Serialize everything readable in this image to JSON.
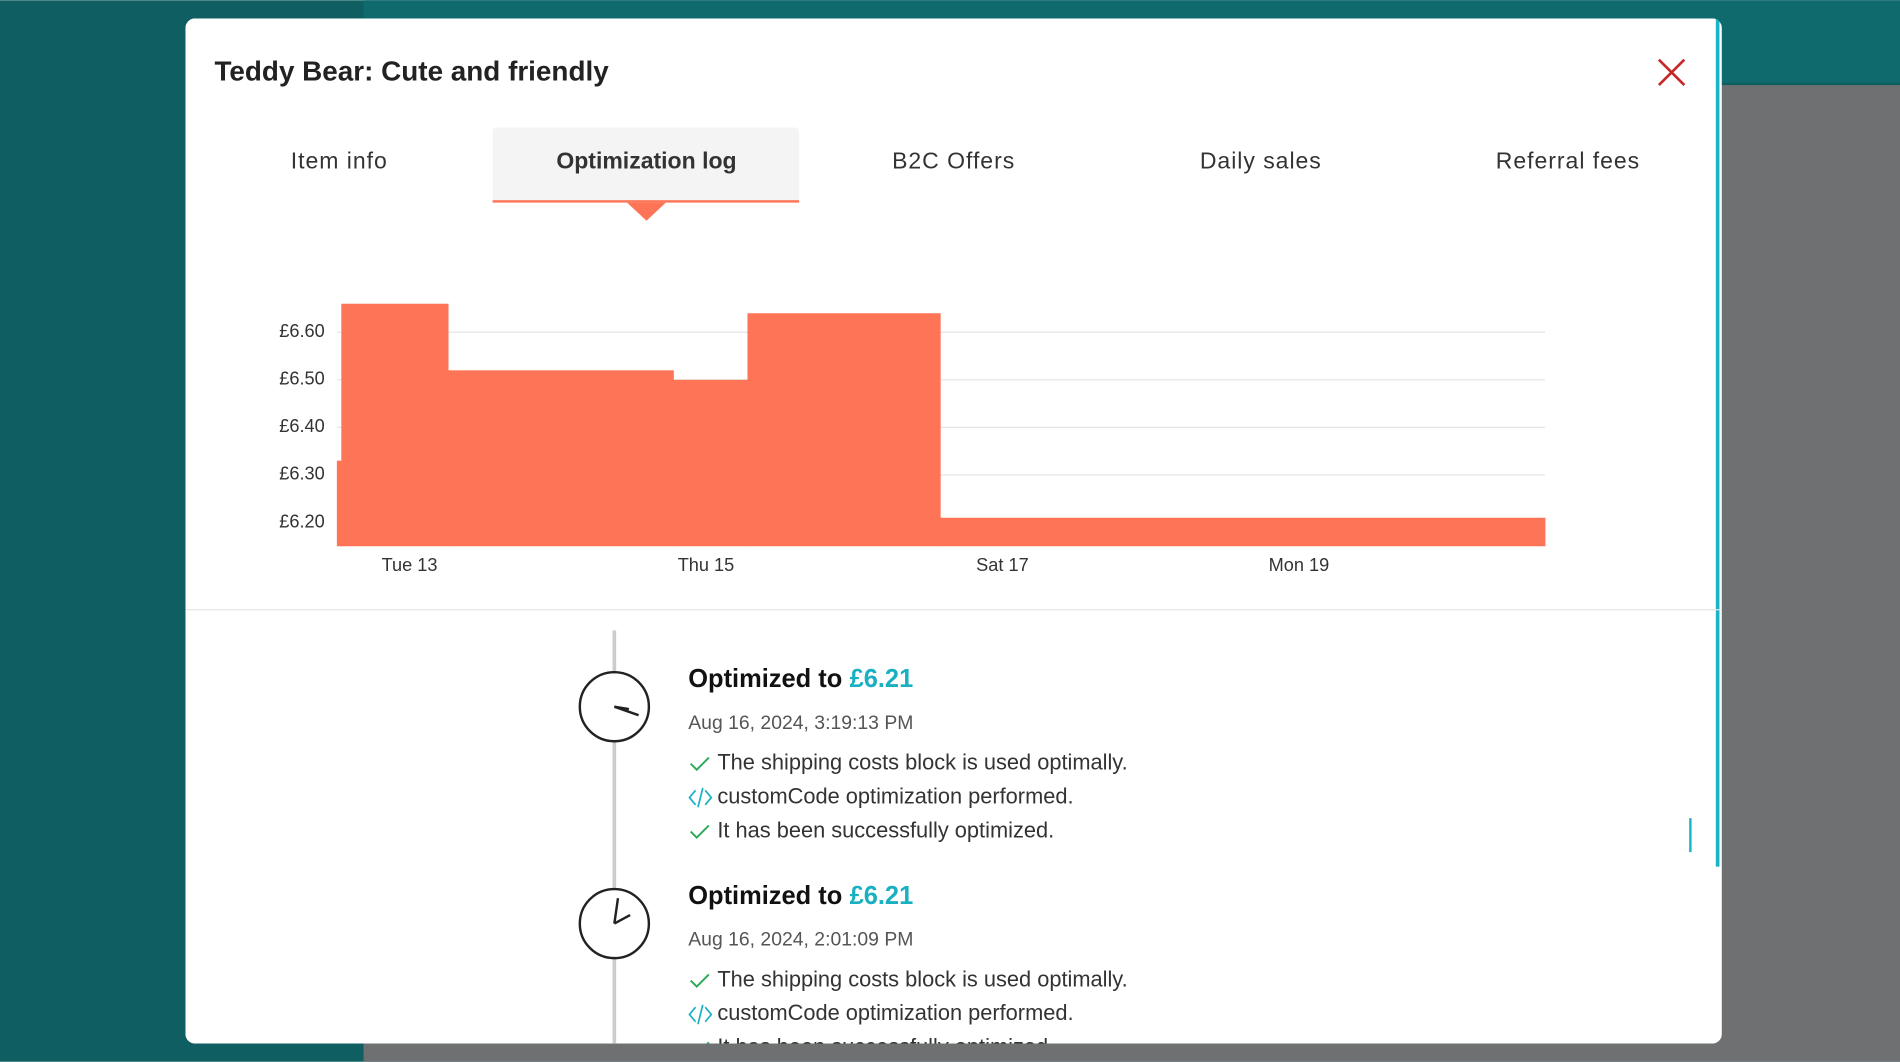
{
  "modal": {
    "title": "Teddy Bear: Cute and friendly",
    "tabs": [
      "Item info",
      "Optimization log",
      "B2C Offers",
      "Daily sales",
      "Referral fees"
    ],
    "active_tab": 1
  },
  "chart_data": {
    "type": "step-area",
    "color": "#fd7456",
    "x": [
      12.51,
      12.54,
      13.26,
      14.78,
      15.28,
      16.58
    ],
    "values": [
      6.33,
      6.66,
      6.52,
      6.5,
      6.64,
      6.21
    ],
    "xlim": [
      12.51,
      20.66
    ],
    "ylim": [
      6.15,
      6.7
    ],
    "xticks": [
      {
        "value": 13,
        "label": "Tue 13"
      },
      {
        "value": 15,
        "label": "Thu 15"
      },
      {
        "value": 17,
        "label": "Sat 17"
      },
      {
        "value": 19,
        "label": "Mon 19"
      }
    ],
    "yticks": [
      {
        "value": 6.2,
        "label": "£6.20"
      },
      {
        "value": 6.3,
        "label": "£6.30"
      },
      {
        "value": 6.4,
        "label": "£6.40"
      },
      {
        "value": 6.5,
        "label": "£6.50"
      },
      {
        "value": 6.6,
        "label": "£6.60"
      }
    ],
    "grid": true
  },
  "log": [
    {
      "heading": "Optimized to",
      "price": "£6.21",
      "date": "Aug 16, 2024, 3:19:13 PM",
      "messages": [
        {
          "kind": "check",
          "text": "The shipping costs block is used optimally."
        },
        {
          "kind": "code",
          "text": "customCode optimization performed."
        },
        {
          "kind": "check",
          "text": "It has been successfully optimized."
        }
      ]
    },
    {
      "heading": "Optimized to",
      "price": "£6.21",
      "date": "Aug 16, 2024, 2:01:09 PM",
      "messages": [
        {
          "kind": "check",
          "text": "The shipping costs block is used optimally."
        },
        {
          "kind": "code",
          "text": "customCode optimization performed."
        },
        {
          "kind": "check",
          "text": "It has been successfully optimized."
        }
      ]
    }
  ]
}
